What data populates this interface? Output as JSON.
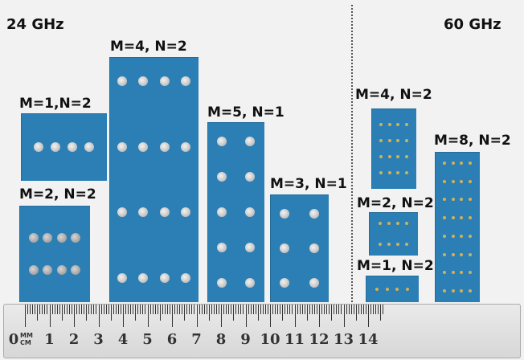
{
  "band_left_label": "24 GHz",
  "band_right_label": "60 GHz",
  "boards": [
    {
      "label": "M=1,N=2",
      "dot_style": "silver",
      "rows": 1,
      "cols": 4
    },
    {
      "label": "M=2, N=2",
      "dot_style": "silver-dark",
      "rows": 2,
      "cols": 4
    },
    {
      "label": "M=4, N=2",
      "dot_style": "silver",
      "rows": 4,
      "cols": 4
    },
    {
      "label": "M=5, N=1",
      "dot_style": "silver",
      "rows": 5,
      "cols": 2
    },
    {
      "label": "M=3, N=1",
      "dot_style": "silver",
      "rows": 3,
      "cols": 2
    },
    {
      "label": "M=4, N=2",
      "dot_style": "gold",
      "rows": 4,
      "cols": 4
    },
    {
      "label": "M=2, N=2",
      "dot_style": "gold",
      "rows": 2,
      "cols": 4
    },
    {
      "label": "M=1, N=2",
      "dot_style": "gold",
      "rows": 1,
      "cols": 4
    },
    {
      "label": "M=8, N=2",
      "dot_style": "gold",
      "rows": 8,
      "cols": 4
    }
  ],
  "ruler": {
    "unit_top": "MM",
    "unit_bottom": "CM",
    "numbers": [
      "0",
      "1",
      "2",
      "3",
      "4",
      "5",
      "6",
      "7",
      "8",
      "9",
      "10",
      "11",
      "12",
      "13",
      "14"
    ]
  },
  "colors": {
    "board": "#2b7fb4",
    "background": "#f2f2f2"
  }
}
